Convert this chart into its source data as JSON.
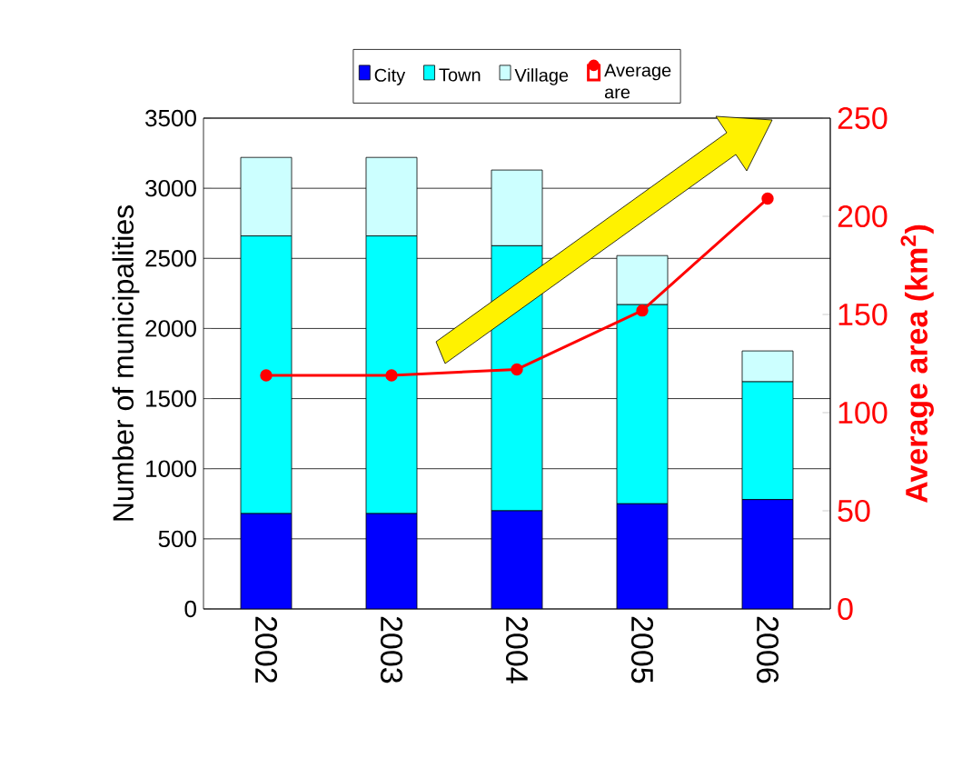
{
  "chart_data": {
    "type": "bar",
    "stacked": true,
    "categories": [
      "2002",
      "2003",
      "2004",
      "2005",
      "2006"
    ],
    "ylabel": "Number of municipalities",
    "y2label": "Average area (km$^{2}$)",
    "ylim": [
      0,
      3500
    ],
    "yticks": [
      0,
      500,
      1000,
      1500,
      2000,
      2500,
      3000,
      3500
    ],
    "y2lim": [
      0,
      250
    ],
    "y2ticks": [
      0,
      50,
      100,
      150,
      200,
      250
    ],
    "grid": "y",
    "legend": "top",
    "series": [
      {
        "name": "City",
        "color": "#0000ff",
        "values": [
          680,
          680,
          700,
          750,
          780
        ]
      },
      {
        "name": "Town",
        "color": "#00ffff",
        "values": [
          1980,
          1980,
          1890,
          1420,
          840
        ]
      },
      {
        "name": "Village",
        "color": "#ccffff",
        "values": [
          560,
          560,
          540,
          350,
          220
        ]
      },
      {
        "name": "Average are",
        "type": "line",
        "axis": "y2",
        "marker": "circle",
        "color": "#ff0000",
        "values": [
          119,
          119,
          122,
          152,
          209
        ]
      }
    ]
  }
}
